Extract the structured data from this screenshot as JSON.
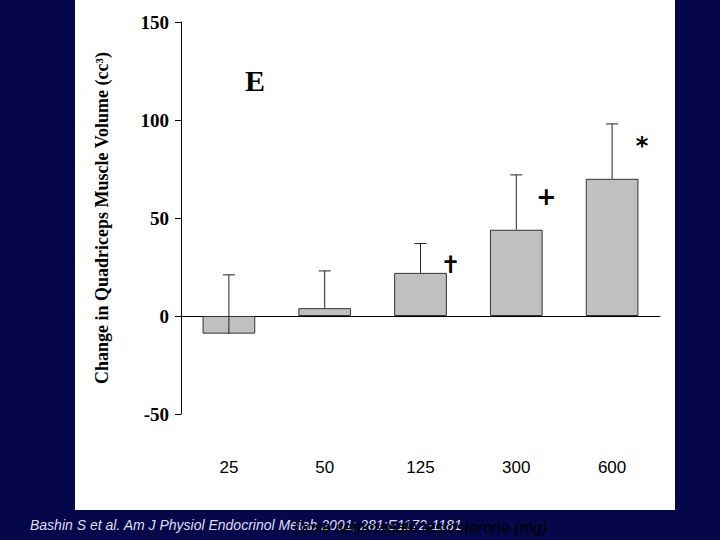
{
  "chart_data": {
    "type": "bar",
    "title": "E",
    "categories": [
      "25",
      "50",
      "125",
      "300",
      "600"
    ],
    "values": [
      -9,
      4,
      22,
      44,
      70
    ],
    "errors": [
      30,
      19,
      15,
      28,
      28
    ],
    "color": "#c0c0c0",
    "ylim": [
      -50,
      150
    ],
    "yticks": [
      -50,
      0,
      50,
      100,
      150
    ],
    "y_label": "Change in Quadriceps Muscle Volume (cc³)",
    "x_label": "Dose settimanale testosterone (mg)",
    "annotations": [
      {
        "category": "125",
        "text": "✝"
      },
      {
        "category": "300",
        "text": "+"
      },
      {
        "category": "600",
        "text": "*"
      }
    ],
    "source": "Bashin S et al. Am J Physiol Endocrinol Metab 2001; 281:E1172-1181",
    "grid": false
  }
}
